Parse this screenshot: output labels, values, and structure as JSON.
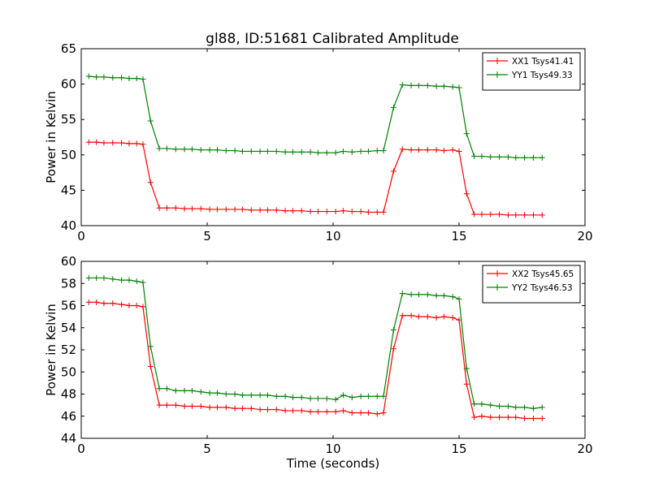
{
  "title": "gl88, ID:51681 Calibrated Amplitude",
  "colors": {
    "xx": "#ff0000",
    "yy": "#008000"
  },
  "chart_data": [
    {
      "type": "line",
      "ylabel": "Power in Kelvin",
      "xlabel": "",
      "xlim": [
        0,
        20
      ],
      "ylim": [
        40,
        65
      ],
      "xticks": [
        0,
        5,
        10,
        15,
        20
      ],
      "yticks": [
        40,
        45,
        50,
        55,
        60,
        65
      ],
      "legend_loc": "top-right",
      "x": [
        0.3,
        0.6,
        0.9,
        1.25,
        1.6,
        1.9,
        2.2,
        2.45,
        2.75,
        3.1,
        3.4,
        3.75,
        4.1,
        4.4,
        4.75,
        5.1,
        5.4,
        5.75,
        6.1,
        6.4,
        6.75,
        7.1,
        7.4,
        7.75,
        8.1,
        8.4,
        8.75,
        9.1,
        9.4,
        9.75,
        10.1,
        10.4,
        10.75,
        11.1,
        11.4,
        11.75,
        12.0,
        12.4,
        12.75,
        13.1,
        13.4,
        13.75,
        14.1,
        14.4,
        14.75,
        15.0,
        15.3,
        15.6,
        15.9,
        16.25,
        16.6,
        16.95,
        17.25,
        17.6,
        17.95,
        18.3
      ],
      "series": [
        {
          "name": "XX1 Tsys41.41",
          "color": "#ff0000",
          "values": [
            51.8,
            51.8,
            51.7,
            51.7,
            51.7,
            51.6,
            51.6,
            51.5,
            46.1,
            42.5,
            42.5,
            42.5,
            42.4,
            42.4,
            42.4,
            42.3,
            42.3,
            42.3,
            42.3,
            42.3,
            42.2,
            42.2,
            42.2,
            42.2,
            42.1,
            42.1,
            42.1,
            42.0,
            42.0,
            42.0,
            42.0,
            42.1,
            42.0,
            42.0,
            41.9,
            41.9,
            41.9,
            47.7,
            50.8,
            50.7,
            50.7,
            50.7,
            50.7,
            50.6,
            50.7,
            50.5,
            44.5,
            41.6,
            41.6,
            41.6,
            41.6,
            41.5,
            41.5,
            41.5,
            41.5,
            41.5
          ]
        },
        {
          "name": "YY1 Tsys49.33",
          "color": "#008000",
          "values": [
            61.1,
            61.0,
            61.0,
            60.9,
            60.9,
            60.8,
            60.8,
            60.7,
            54.8,
            50.9,
            50.9,
            50.8,
            50.8,
            50.8,
            50.7,
            50.7,
            50.7,
            50.6,
            50.6,
            50.5,
            50.5,
            50.5,
            50.5,
            50.5,
            50.4,
            50.4,
            50.4,
            50.4,
            50.3,
            50.3,
            50.3,
            50.5,
            50.4,
            50.5,
            50.5,
            50.6,
            50.6,
            56.7,
            59.9,
            59.8,
            59.8,
            59.8,
            59.7,
            59.7,
            59.6,
            59.5,
            53.0,
            49.8,
            49.8,
            49.7,
            49.7,
            49.7,
            49.6,
            49.6,
            49.6,
            49.6
          ]
        }
      ]
    },
    {
      "type": "line",
      "ylabel": "Power in Kelvin",
      "xlabel": "Time (seconds)",
      "xlim": [
        0,
        20
      ],
      "ylim": [
        44,
        60
      ],
      "xticks": [
        0,
        5,
        10,
        15,
        20
      ],
      "yticks": [
        44,
        46,
        48,
        50,
        52,
        54,
        56,
        58,
        60
      ],
      "legend_loc": "top-right",
      "x": [
        0.3,
        0.6,
        0.9,
        1.25,
        1.6,
        1.9,
        2.2,
        2.45,
        2.75,
        3.1,
        3.4,
        3.75,
        4.1,
        4.4,
        4.75,
        5.1,
        5.4,
        5.75,
        6.1,
        6.4,
        6.75,
        7.1,
        7.4,
        7.75,
        8.1,
        8.4,
        8.75,
        9.1,
        9.4,
        9.75,
        10.1,
        10.4,
        10.75,
        11.1,
        11.4,
        11.75,
        12.0,
        12.4,
        12.75,
        13.1,
        13.4,
        13.75,
        14.1,
        14.4,
        14.75,
        15.0,
        15.3,
        15.6,
        15.9,
        16.25,
        16.6,
        16.95,
        17.25,
        17.6,
        17.95,
        18.3
      ],
      "series": [
        {
          "name": "XX2 Tsys45.65",
          "color": "#ff0000",
          "values": [
            56.3,
            56.3,
            56.2,
            56.2,
            56.1,
            56.0,
            56.0,
            55.9,
            50.5,
            47.0,
            47.0,
            47.0,
            46.9,
            46.9,
            46.9,
            46.8,
            46.8,
            46.8,
            46.7,
            46.7,
            46.7,
            46.6,
            46.6,
            46.6,
            46.5,
            46.5,
            46.5,
            46.4,
            46.4,
            46.4,
            46.4,
            46.5,
            46.3,
            46.3,
            46.3,
            46.2,
            46.3,
            52.1,
            55.1,
            55.1,
            55.0,
            55.0,
            54.9,
            55.0,
            54.9,
            54.7,
            48.9,
            45.9,
            46.0,
            45.9,
            45.9,
            45.9,
            45.9,
            45.8,
            45.8,
            45.8
          ]
        },
        {
          "name": "YY2 Tsys46.53",
          "color": "#008000",
          "values": [
            58.5,
            58.5,
            58.5,
            58.4,
            58.3,
            58.3,
            58.2,
            58.1,
            52.3,
            48.5,
            48.5,
            48.3,
            48.3,
            48.3,
            48.2,
            48.1,
            48.1,
            48.0,
            48.0,
            47.9,
            47.9,
            47.9,
            47.9,
            47.8,
            47.8,
            47.7,
            47.7,
            47.6,
            47.6,
            47.6,
            47.5,
            47.9,
            47.7,
            47.8,
            47.8,
            47.8,
            47.8,
            53.8,
            57.1,
            57.0,
            57.0,
            57.0,
            56.9,
            56.9,
            56.8,
            56.6,
            50.3,
            47.1,
            47.1,
            47.0,
            46.9,
            46.9,
            46.8,
            46.8,
            46.7,
            46.8
          ]
        }
      ]
    }
  ]
}
